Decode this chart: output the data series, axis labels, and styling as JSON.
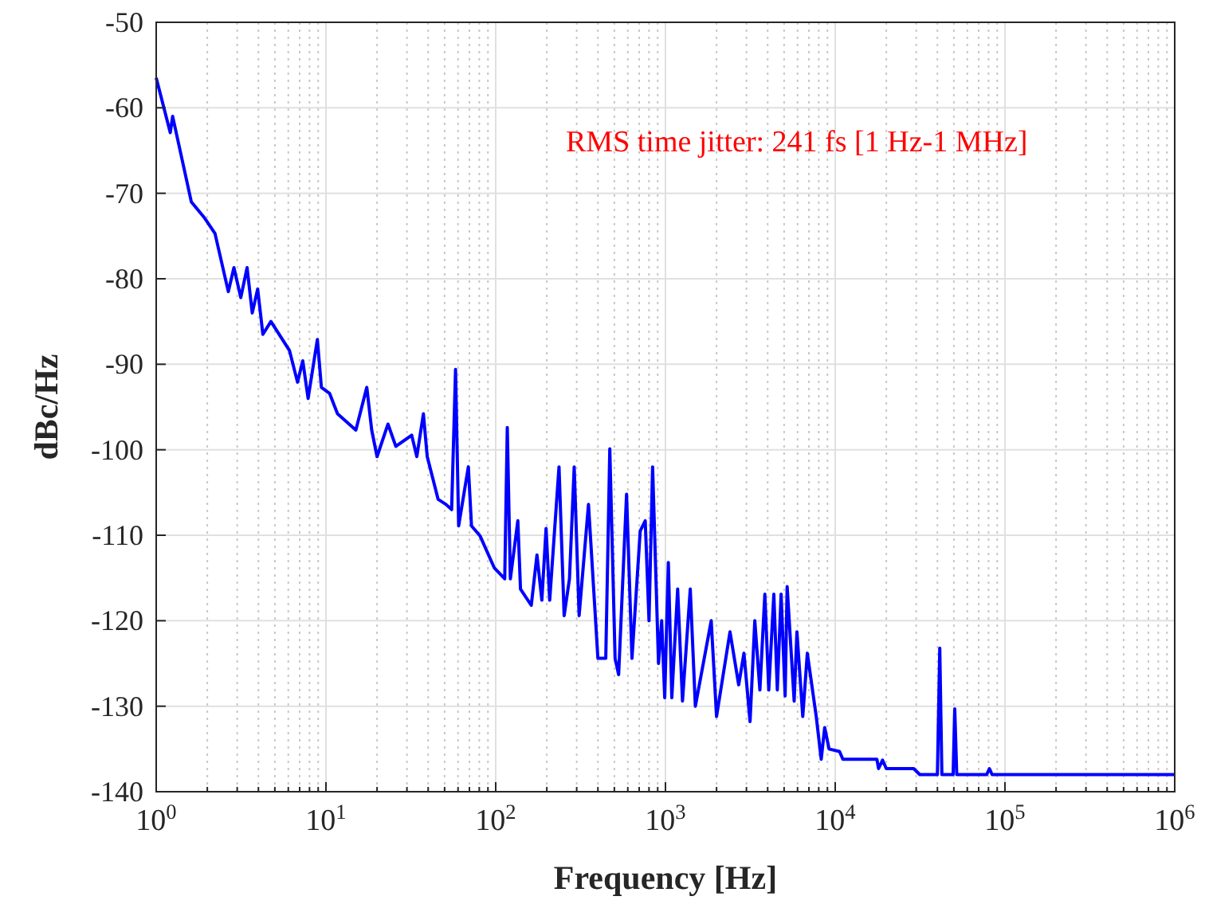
{
  "chart_data": {
    "type": "line",
    "xlabel": "Frequency [Hz]",
    "ylabel": "dBc/Hz",
    "log": "x",
    "grid": true,
    "marker": "none",
    "line_style": "solid",
    "annotations": [
      "RMS time jitter: 241 fs [1 Hz-1 MHz]"
    ],
    "xlim": [
      1,
      1000000
    ],
    "ylim": [
      -140,
      -50
    ],
    "xticks": [
      {
        "value": 1,
        "label": "10$^{0}$"
      },
      {
        "value": 10,
        "label": "10$^{1}$"
      },
      {
        "value": 100,
        "label": "10$^{2}$"
      },
      {
        "value": 1000,
        "label": "10$^{3}$"
      },
      {
        "value": 10000,
        "label": "10$^{4}$"
      },
      {
        "value": 100000,
        "label": "10$^{5}$"
      },
      {
        "value": 1000000,
        "label": "10$^{6}$"
      }
    ],
    "yticks": [
      -140,
      -130,
      -120,
      -110,
      -100,
      -90,
      -80,
      -70,
      -60,
      -50
    ],
    "series": [
      {
        "color": "#0000ff",
        "x": [
          1,
          1.21,
          1.25,
          1.61,
          1.93,
          2.22,
          2.66,
          2.87,
          3.15,
          3.43,
          3.68,
          3.96,
          4.25,
          4.74,
          6.1,
          6.8,
          7.3,
          7.85,
          8.9,
          9.4,
          10.5,
          11.7,
          15,
          17.4,
          18.6,
          20,
          23.2,
          25.8,
          32,
          34.3,
          37.5,
          39.5,
          45.8,
          51,
          55,
          58,
          60.5,
          69,
          72,
          81,
          98,
          113,
          117,
          122,
          135,
          140,
          162,
          175,
          187,
          198,
          208,
          236,
          253,
          272,
          290,
          310,
          352,
          400,
          445,
          470,
          505,
          530,
          590,
          635,
          710,
          760,
          800,
          840,
          910,
          950,
          990,
          1040,
          1090,
          1180,
          1260,
          1400,
          1500,
          1860,
          2000,
          2400,
          2700,
          2900,
          3150,
          3360,
          3600,
          3850,
          4060,
          4350,
          4560,
          4800,
          5070,
          5210,
          5730,
          5950,
          6440,
          6850,
          7730,
          8270,
          8670,
          9200,
          10600,
          11100,
          17600,
          18000,
          19000,
          20000,
          29000,
          31500,
          40000,
          41300,
          42500,
          49500,
          50600,
          52000,
          78000,
          81000,
          84000,
          1000000
        ],
        "values": [
          -56.5,
          -62.9,
          -61,
          -71,
          -72.9,
          -74.7,
          -81.5,
          -78.7,
          -82.2,
          -78.7,
          -84,
          -81.2,
          -86.5,
          -85,
          -88.4,
          -92.1,
          -89.6,
          -94,
          -87.1,
          -92.7,
          -93.4,
          -95.8,
          -97.7,
          -92.7,
          -97.7,
          -100.8,
          -97,
          -99.6,
          -98.3,
          -100.8,
          -95.8,
          -100.8,
          -105.8,
          -106.4,
          -107,
          -90.6,
          -108.9,
          -102,
          -108.9,
          -110.1,
          -113.8,
          -115.1,
          -97.4,
          -115.1,
          -108.3,
          -116.3,
          -118.2,
          -112.3,
          -117.6,
          -109.2,
          -117.6,
          -102,
          -119.4,
          -115.1,
          -102,
          -119.4,
          -106.4,
          -124.4,
          -124.4,
          -99.9,
          -124.4,
          -126.3,
          -105.2,
          -124.4,
          -109.5,
          -108.3,
          -120,
          -102,
          -125,
          -120,
          -129,
          -113.2,
          -129,
          -116.3,
          -129.4,
          -116.3,
          -130,
          -120,
          -131.2,
          -121.3,
          -127.5,
          -123.8,
          -131.8,
          -120,
          -128.1,
          -116.9,
          -128.1,
          -116.9,
          -128.1,
          -116.9,
          -128.8,
          -116,
          -129.4,
          -121.3,
          -131.2,
          -123.8,
          -131.2,
          -136.2,
          -132.5,
          -135,
          -135.3,
          -136.2,
          -136.2,
          -137.3,
          -136.3,
          -137.3,
          -137.3,
          -138,
          -138,
          -123.2,
          -138,
          -138,
          -130.3,
          -138,
          -138,
          -137.3,
          -138,
          -138
        ]
      }
    ]
  }
}
